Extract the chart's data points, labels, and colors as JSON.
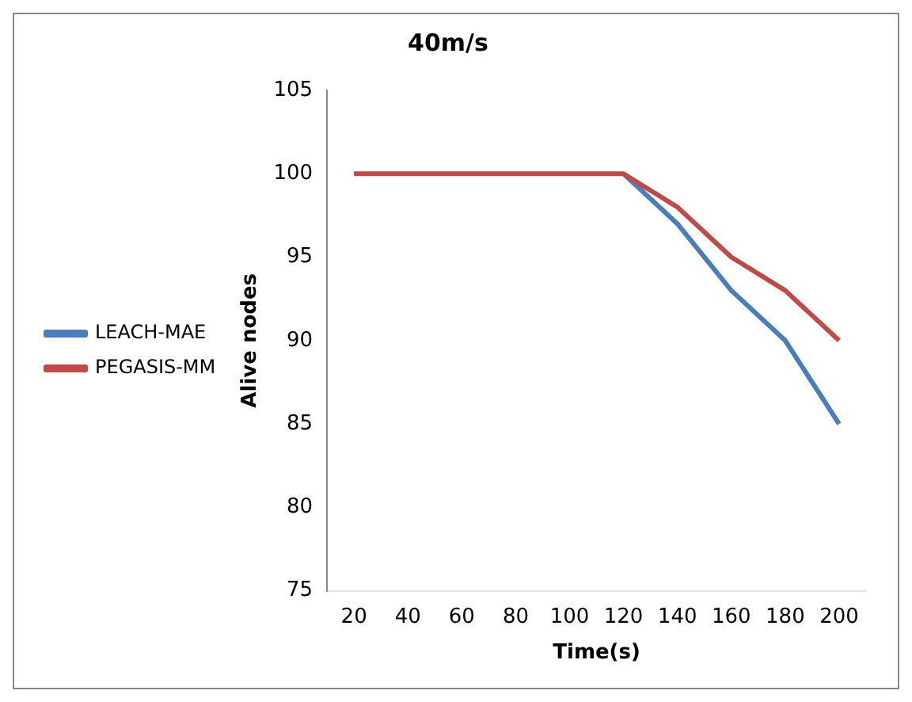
{
  "chart_data": {
    "type": "line",
    "title": "40m/s",
    "xlabel": "Time(s)",
    "ylabel": "Alive nodes",
    "categories": [
      "20",
      "40",
      "60",
      "80",
      "100",
      "120",
      "140",
      "160",
      "180",
      "200"
    ],
    "series": [
      {
        "name": "LEACH-MAE",
        "color": "#4a7ebb",
        "values": [
          null,
          null,
          null,
          null,
          null,
          100,
          97,
          93,
          90,
          85
        ]
      },
      {
        "name": "PEGASIS-MM",
        "color": "#be4b48",
        "values": [
          100,
          100,
          100,
          100,
          100,
          100,
          98,
          95,
          93,
          90
        ]
      }
    ],
    "ylim": [
      75,
      105
    ],
    "yticks": [
      75,
      80,
      85,
      90,
      95,
      100,
      105
    ],
    "grid": false,
    "legend": "left",
    "marker": "none",
    "line_style": "solid"
  }
}
